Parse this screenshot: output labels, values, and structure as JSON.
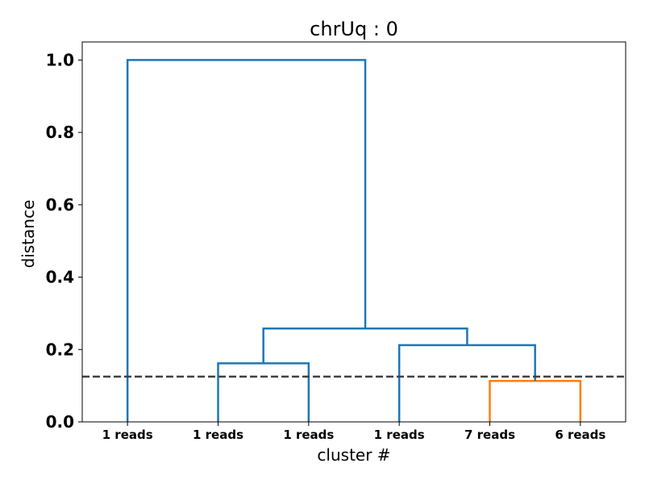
{
  "chart_data": {
    "type": "dendrogram",
    "title": "chrUq : 0",
    "xlabel": "cluster #",
    "ylabel": "distance",
    "ylim": [
      0,
      1.05
    ],
    "yticks": [
      "0.0",
      "0.2",
      "0.4",
      "0.6",
      "0.8",
      "1.0"
    ],
    "leaves": [
      "1 reads",
      "1 reads",
      "1 reads",
      "1 reads",
      "7 reads",
      "6 reads"
    ],
    "threshold": 0.125,
    "grid": false,
    "links": [
      {
        "left": 4,
        "right": 5,
        "height": 0.113,
        "color": "#ff7f0e"
      },
      {
        "left": 1,
        "right": 2,
        "height": 0.162,
        "color": "#1f77b4"
      },
      {
        "left": 3,
        "right": "4-5",
        "height": 0.212,
        "color": "#1f77b4"
      },
      {
        "left": "1-2",
        "right": "3-5",
        "height": 0.258,
        "color": "#1f77b4"
      },
      {
        "left": 0,
        "right": "1-5",
        "height": 1.0,
        "color": "#1f77b4"
      }
    ],
    "threshold_color": "#404040"
  }
}
